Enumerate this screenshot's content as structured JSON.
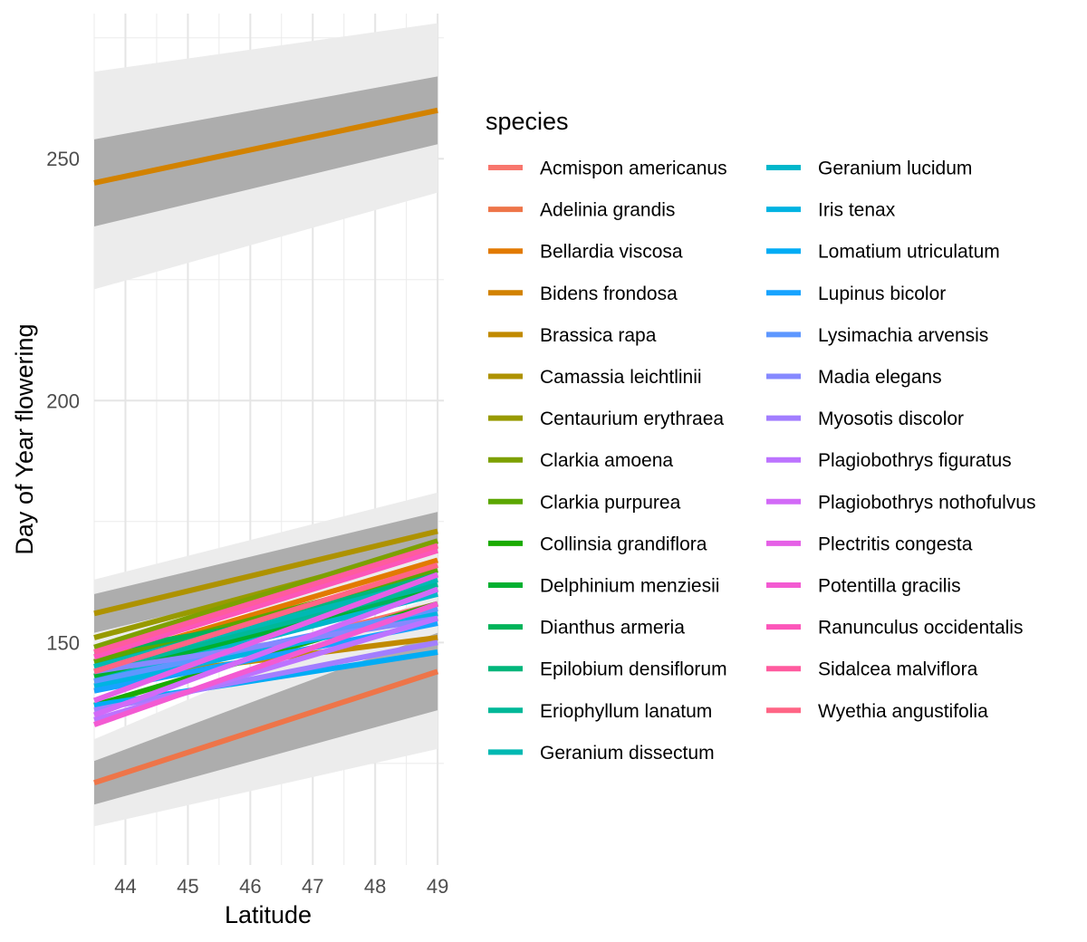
{
  "chart_data": {
    "type": "line",
    "title": "",
    "xlabel": "Latitude",
    "ylabel": "Day of Year flowering",
    "xlim": [
      43.5,
      49.1
    ],
    "ylim": [
      104,
      280
    ],
    "x_ticks": [
      "44",
      "45",
      "46",
      "47",
      "48",
      "49"
    ],
    "y_ticks": [
      "150",
      "200",
      "250"
    ],
    "grid": true,
    "legend_title": "species",
    "legend_position": "right",
    "x": [
      43.5,
      49
    ],
    "series": [
      {
        "name": "Acmispon americanus",
        "color": "#F8766D",
        "values": [
          140,
          158
        ]
      },
      {
        "name": "Adelinia grandis",
        "color": "#EE7549",
        "values": [
          121,
          144
        ],
        "ribbon_inner": [
          [
            116.5,
            125.5
          ],
          [
            136,
            152
          ]
        ],
        "ribbon_outer": [
          [
            112,
            130
          ],
          [
            128,
            160
          ]
        ]
      },
      {
        "name": "Bellardia viscosa",
        "color": "#E27A00",
        "values": [
          146,
          167
        ]
      },
      {
        "name": "Bidens frondosa",
        "color": "#D28200",
        "values": [
          245,
          260
        ],
        "ribbon_inner": [
          [
            236,
            254
          ],
          [
            253,
            267
          ]
        ],
        "ribbon_outer": [
          [
            223,
            268
          ],
          [
            243,
            278
          ]
        ]
      },
      {
        "name": "Brassica rapa",
        "color": "#C18A00",
        "values": [
          142,
          151
        ]
      },
      {
        "name": "Camassia leichtlinii",
        "color": "#AE9200",
        "values": [
          156,
          173
        ],
        "ribbon_inner": [
          [
            152,
            160
          ],
          [
            169,
            177
          ]
        ],
        "ribbon_outer": [
          [
            149,
            163
          ],
          [
            165,
            181
          ]
        ]
      },
      {
        "name": "Centaurium erythraea",
        "color": "#989A00",
        "values": [
          151,
          170
        ]
      },
      {
        "name": "Clarkia amoena",
        "color": "#7DA000",
        "values": [
          149,
          171
        ]
      },
      {
        "name": "Clarkia purpurea",
        "color": "#5BA600",
        "values": [
          146,
          165
        ]
      },
      {
        "name": "Collinsia grandiflora",
        "color": "#1AAB00",
        "values": [
          137,
          158
        ]
      },
      {
        "name": "Delphinium menziesii",
        "color": "#00B030",
        "values": [
          143,
          161
        ]
      },
      {
        "name": "Dianthus armeria",
        "color": "#00B35A",
        "values": [
          148,
          160
        ]
      },
      {
        "name": "Epilobium densiflorum",
        "color": "#00B67B",
        "values": [
          145,
          164
        ]
      },
      {
        "name": "Eriophyllum lanatum",
        "color": "#00B898",
        "values": [
          144,
          162
        ]
      },
      {
        "name": "Geranium dissectum",
        "color": "#00B9B2",
        "values": [
          145,
          163
        ]
      },
      {
        "name": "Geranium lucidum",
        "color": "#00B7CB",
        "values": [
          142,
          160
        ]
      },
      {
        "name": "Iris tenax",
        "color": "#00B3E2",
        "values": [
          141,
          156
        ]
      },
      {
        "name": "Lomatium utriculatum",
        "color": "#00ACF5",
        "values": [
          137,
          148
        ]
      },
      {
        "name": "Lupinus bicolor",
        "color": "#17A3FF",
        "values": [
          140,
          154
        ]
      },
      {
        "name": "Lysimachia arvensis",
        "color": "#5E97FF",
        "values": [
          142,
          157
        ]
      },
      {
        "name": "Madia elegans",
        "color": "#8689FF",
        "values": [
          144,
          155
        ]
      },
      {
        "name": "Myosotis discolor",
        "color": "#A27EFF",
        "values": [
          136,
          150
        ]
      },
      {
        "name": "Plagiobothrys figuratus",
        "color": "#BC73FF",
        "values": [
          134,
          155
        ]
      },
      {
        "name": "Plagiobothrys nothofulvus",
        "color": "#D26AF7",
        "values": [
          135,
          161
        ]
      },
      {
        "name": "Plectritis congesta",
        "color": "#E560E6",
        "values": [
          138,
          164
        ]
      },
      {
        "name": "Potentilla gracilis",
        "color": "#F35AD2",
        "values": [
          133,
          158
        ]
      },
      {
        "name": "Ranunculus occidentalis",
        "color": "#FC56BA",
        "values": [
          147,
          169
        ]
      },
      {
        "name": "Sidalcea malviflora",
        "color": "#FF5B9F",
        "values": [
          148,
          170
        ]
      },
      {
        "name": "Wyethia angustifolia",
        "color": "#FF6585",
        "values": [
          144,
          166
        ]
      }
    ]
  }
}
